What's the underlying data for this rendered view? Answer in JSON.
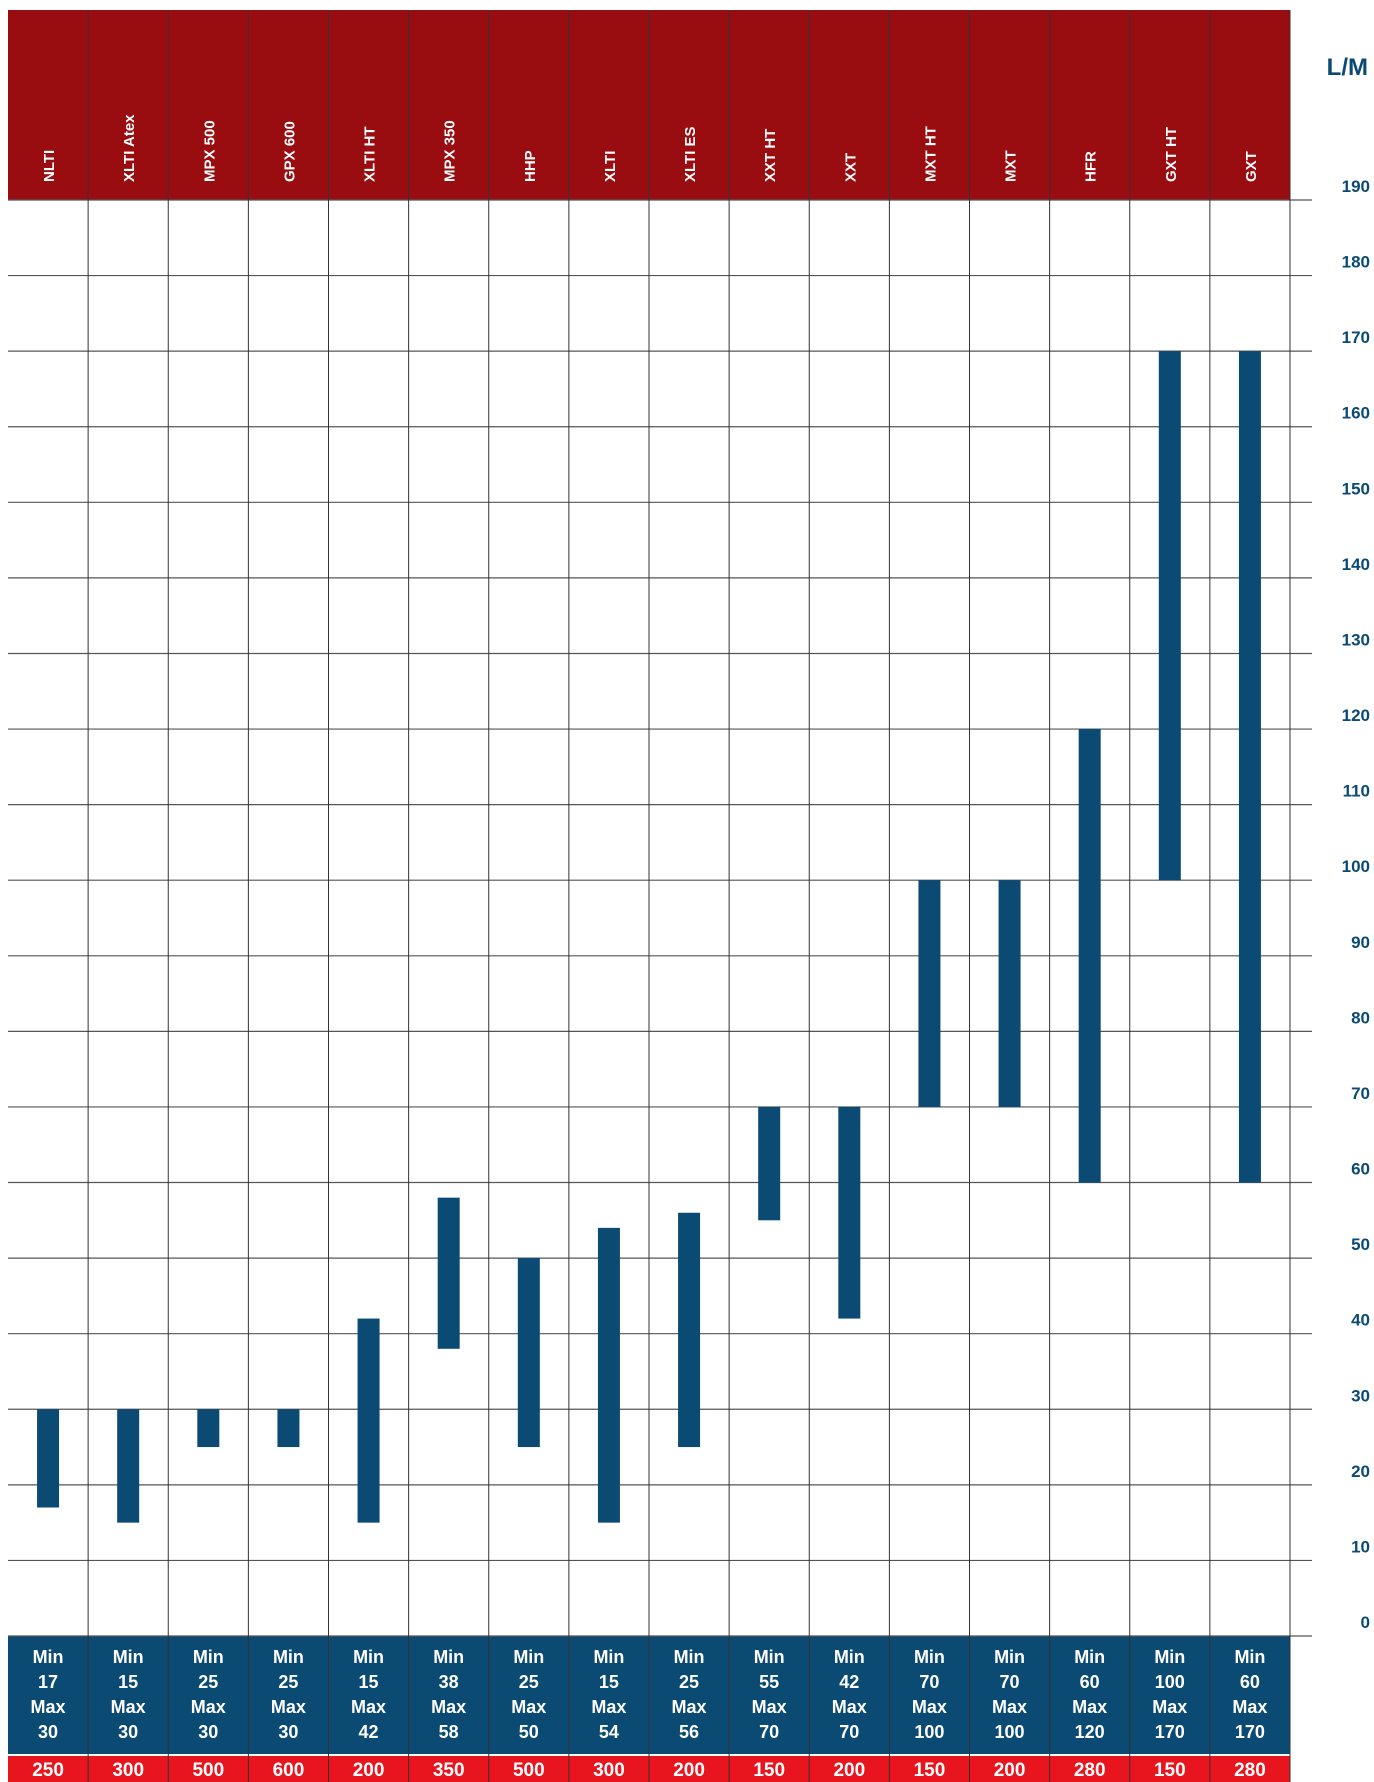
{
  "colors": {
    "header_bg": "#990c10",
    "bar": "#0b4a73",
    "stats_bg": "#0b4a73",
    "bottom_bg": "#e8141e",
    "grid": "#555555",
    "tick_text": "#0b4a73"
  },
  "chart_data": {
    "type": "bar",
    "ylabel": "L/M",
    "ylim": [
      0,
      190
    ],
    "yticks": [
      0,
      10,
      20,
      30,
      40,
      50,
      60,
      70,
      80,
      90,
      100,
      110,
      120,
      130,
      140,
      150,
      160,
      170,
      180,
      190
    ],
    "grid": true,
    "categories": [
      "NLTI",
      "XLTI Atex",
      "MPX 500",
      "GPX 600",
      "XLTI HT",
      "MPX 350",
      "HHP",
      "XLTI",
      "XLTI ES",
      "XXT HT",
      "XXT",
      "MXT HT",
      "MXT",
      "HFR",
      "GXT HT",
      "GXT"
    ],
    "min": [
      17,
      15,
      25,
      25,
      15,
      38,
      25,
      15,
      25,
      55,
      42,
      70,
      70,
      60,
      100,
      60
    ],
    "max": [
      30,
      30,
      30,
      30,
      42,
      58,
      50,
      54,
      56,
      70,
      70,
      100,
      100,
      120,
      170,
      170
    ],
    "min_label": "Min",
    "max_label": "Max",
    "bottom_values": [
      "250",
      "300",
      "500",
      "600",
      "200",
      "350",
      "500",
      "300",
      "200",
      "150",
      "200",
      "150",
      "200",
      "280",
      "150",
      "280"
    ]
  }
}
